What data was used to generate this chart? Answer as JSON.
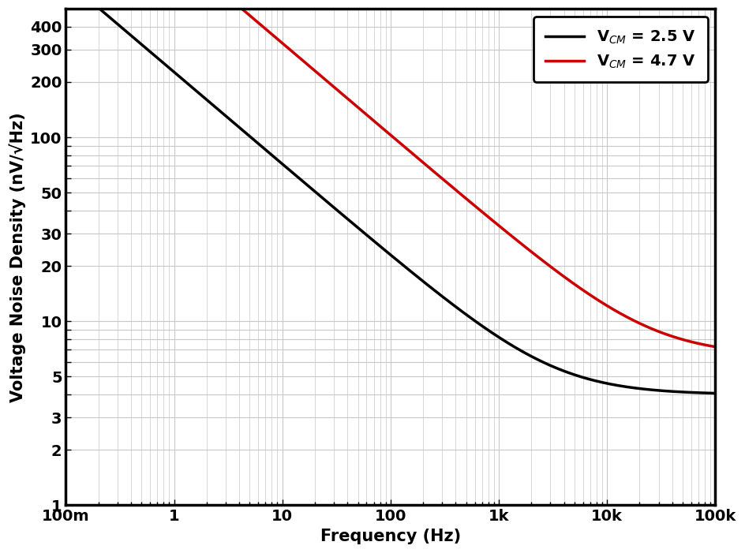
{
  "xlabel": "Frequency (Hz)",
  "ylabel": "Voltage Noise Density (nV/√Hz)",
  "xlim": [
    0.1,
    100000
  ],
  "ylim": [
    1,
    500
  ],
  "xtick_labels": [
    "100m",
    "1",
    "10",
    "100",
    "1k",
    "10k",
    "100k"
  ],
  "xtick_positions": [
    0.1,
    1,
    10,
    100,
    1000,
    10000,
    100000
  ],
  "background_color": "#ffffff",
  "plot_bg_color": "#ffffff",
  "line1_color": "#000000",
  "line2_color": "#cc0000",
  "line1_label": "V$_{CM}$ = 2.5 V",
  "line2_label": "V$_{CM}$ = 4.7 V",
  "line_width": 2.5,
  "legend_fontsize": 14,
  "axis_label_fontsize": 15,
  "tick_fontsize": 14,
  "curve1_floor": 4.0,
  "curve1_knee": 3200,
  "curve2_floor": 6.5,
  "curve2_knee": 25000
}
